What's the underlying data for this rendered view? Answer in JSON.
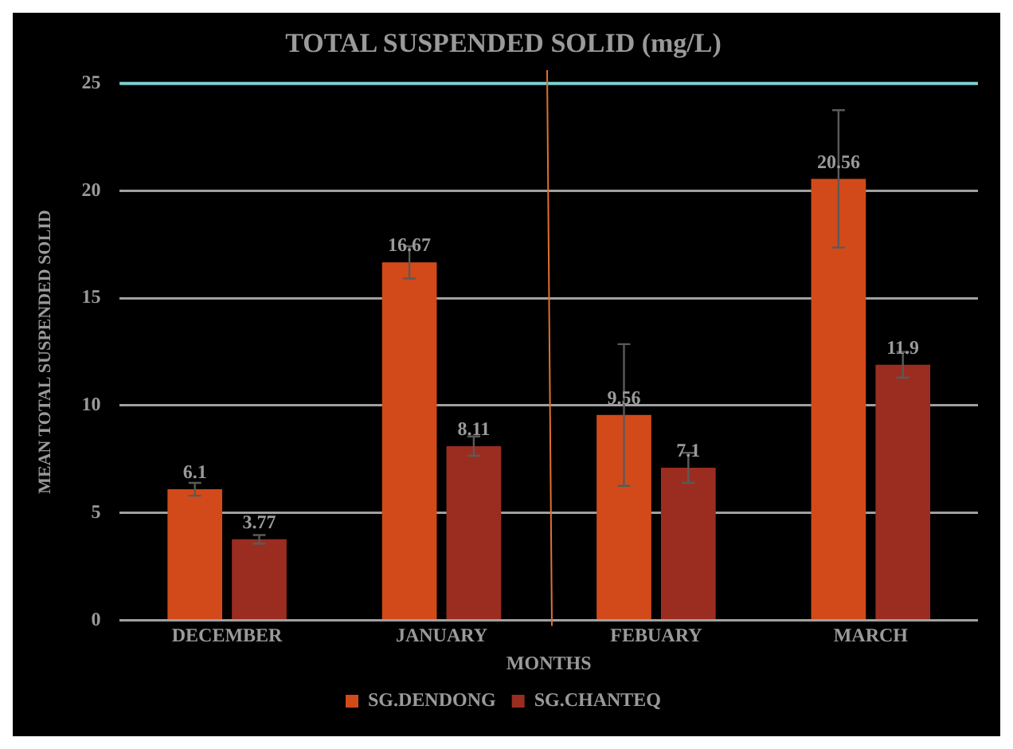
{
  "chart_data": {
    "type": "bar",
    "title": "TOTAL SUSPENDED SOLID (mg/L)",
    "xlabel": "MONTHS",
    "ylabel": "MEAN TOTAL SUSPENDED SOLID",
    "categories": [
      "DECEMBER",
      "JANUARY",
      "FEBUARY",
      "MARCH"
    ],
    "series": [
      {
        "name": "SG.DENDONG",
        "color": "#d24a1a",
        "values": [
          6.1,
          16.67,
          9.56,
          20.56
        ],
        "errors": [
          0.3,
          0.75,
          3.3,
          3.2
        ]
      },
      {
        "name": "SG.CHANTEQ",
        "color": "#9b2d20",
        "values": [
          3.77,
          8.11,
          7.1,
          11.9
        ],
        "errors": [
          0.2,
          0.45,
          0.7,
          0.6
        ]
      }
    ],
    "ylim": [
      0,
      25
    ],
    "yticks": [
      0,
      5,
      10,
      15,
      20,
      25
    ],
    "grid": "y",
    "legend": "bottom",
    "data_labels": true,
    "ref_lines": [
      {
        "axis": "y",
        "value": 25,
        "color": "#7ecfcf"
      }
    ]
  }
}
